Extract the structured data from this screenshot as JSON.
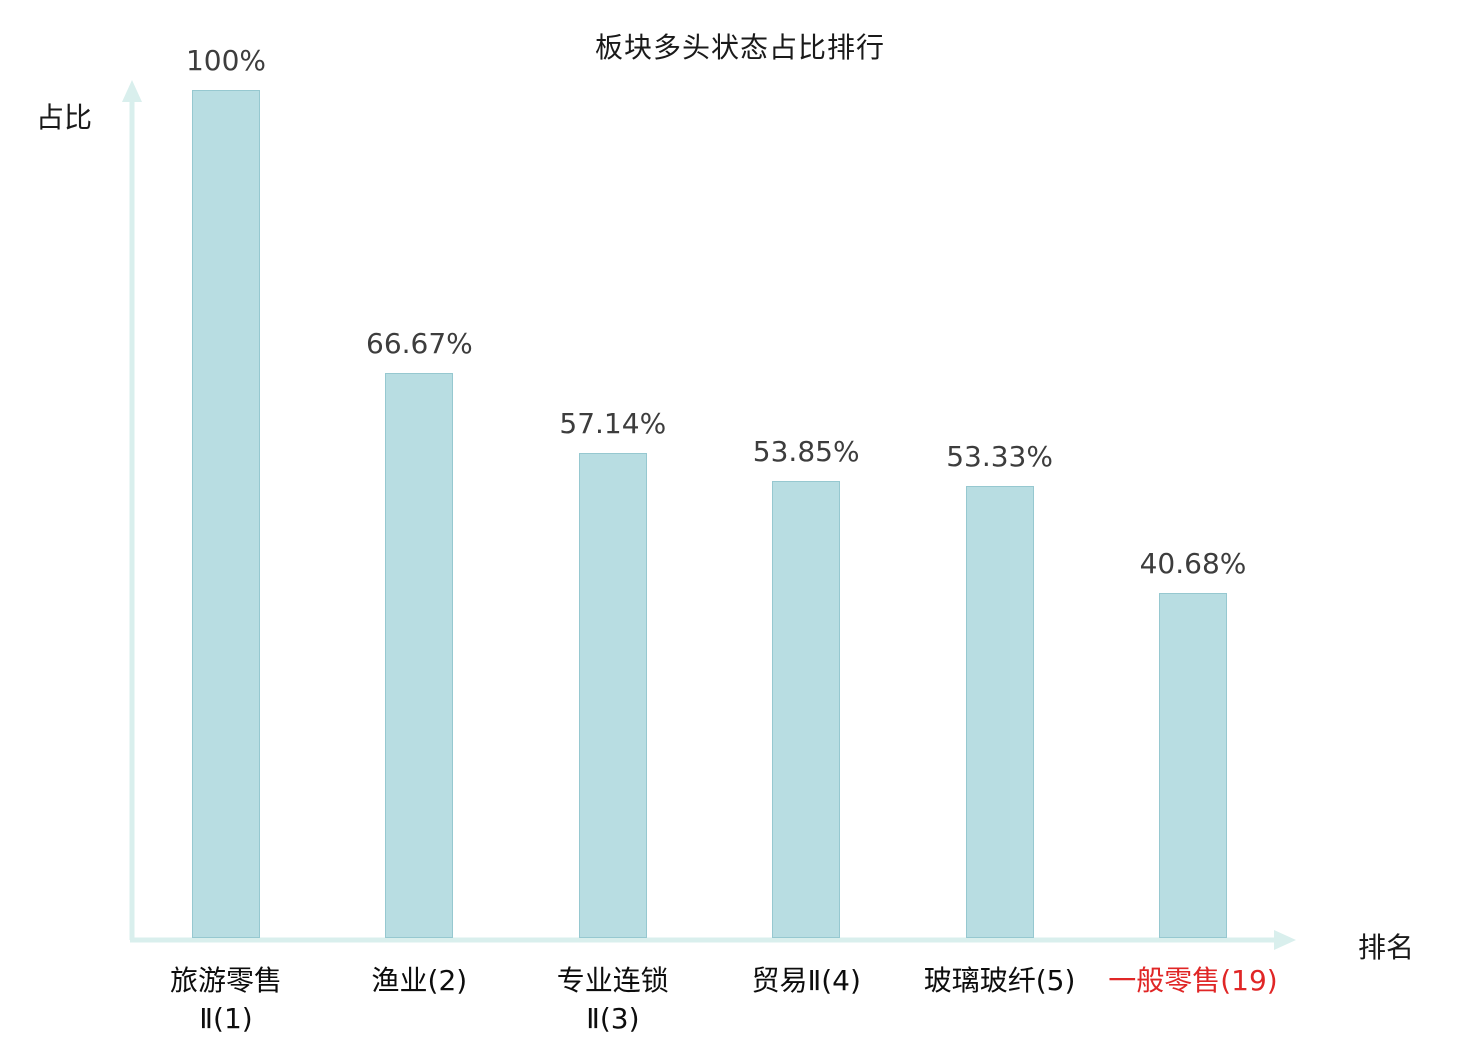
{
  "chart_data": {
    "type": "bar",
    "title": "板块多头状态占比排行",
    "xlabel": "排名",
    "ylabel": "占比",
    "categories": [
      "旅游零售Ⅱ(1)",
      "渔业(2)",
      "专业连锁Ⅱ(3)",
      "贸易Ⅱ(4)",
      "玻璃玻纤(5)",
      "一般零售(19)"
    ],
    "category_display": [
      "旅游零售\nⅡ(1)",
      "渔业(2)",
      "专业连锁\nⅡ(3)",
      "贸易Ⅱ(4)",
      "玻璃玻纤(5)",
      "一般零售(19)"
    ],
    "values": [
      100,
      66.67,
      57.14,
      53.85,
      53.33,
      40.68
    ],
    "value_labels": [
      "100%",
      "66.67%",
      "57.14%",
      "53.85%",
      "53.33%",
      "40.68%"
    ],
    "highlight_index": 5,
    "ylim": [
      0,
      100
    ],
    "grid": false,
    "legend": "none",
    "bar_color": "#b8dde2",
    "bar_border_color": "#96c8d0",
    "axis_color": "#d9efed",
    "value_label_color": "#3d3d3d",
    "category_color": "#0d0d0d",
    "highlight_color": "#e02626"
  }
}
